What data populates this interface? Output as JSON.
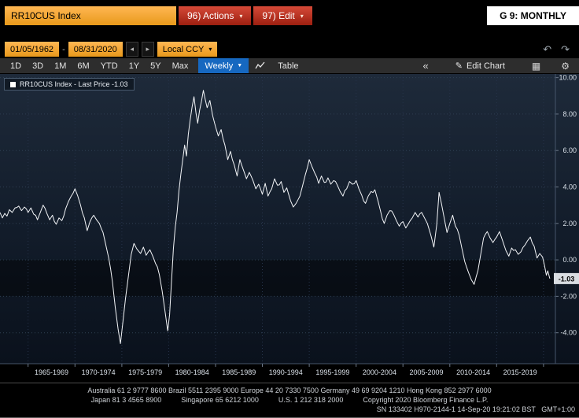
{
  "titlebar": {
    "ticker": "RR10CUS Index",
    "actions": "96) Actions",
    "edit": "97) Edit",
    "page_label": "G 9: MONTHLY"
  },
  "datebar": {
    "start": "01/05/1962",
    "dash": "-",
    "end": "08/31/2020",
    "currency": "Local CCY"
  },
  "toolbar": {
    "periods": [
      "1D",
      "3D",
      "1M",
      "6M",
      "YTD",
      "1Y",
      "5Y",
      "Max"
    ],
    "frequency": "Weekly",
    "table": "Table",
    "edit_chart": "Edit Chart"
  },
  "icons": {
    "caret_down_small": "▾",
    "caret_down": "▼",
    "back_arrow": "◂",
    "forward_arrow": "▸",
    "undo": "↶",
    "redo": "↷",
    "collapse": "«",
    "pencil": "✎",
    "grid": "▦",
    "gear": "⚙"
  },
  "chart": {
    "legend_label": "RR10CUS Index - Last Price -1.03",
    "last_price": "-1.03",
    "y_tick_values": [
      10,
      8,
      6,
      4,
      2,
      0,
      -2,
      -4
    ],
    "y_tick_labels": [
      "10.00",
      "8.00",
      "6.00",
      "4.00",
      "2.00",
      "0.00",
      "-2.00",
      "-4.00"
    ],
    "x_tick_labels": [
      "1965-1969",
      "1970-1974",
      "1975-1979",
      "1980-1984",
      "1985-1989",
      "1990-1994",
      "1995-1999",
      "2000-2004",
      "2005-2009",
      "2010-2014",
      "2015-2019"
    ],
    "x_tick_centers": [
      1967.5,
      1972.5,
      1977.5,
      1982.5,
      1987.5,
      1992.5,
      1997.5,
      2002.5,
      2007.5,
      2012.5,
      2017.5
    ],
    "band": {
      "from": 0,
      "to": -2
    },
    "line_color": "#f3f5f8",
    "accent_amber": "#f5a11e",
    "accent_red": "#b5271c",
    "accent_blue": "#1668c0"
  },
  "chart_data": {
    "type": "line",
    "title": "RR10CUS Index",
    "xlabel": "",
    "ylabel": "",
    "xlim": [
      1962,
      2021.1
    ],
    "ylim": [
      -5.7,
      10.2
    ],
    "x_tick_years": [
      1965,
      1970,
      1975,
      1980,
      1985,
      1990,
      1995,
      2000,
      2005,
      2010,
      2015,
      2020
    ],
    "series": [
      {
        "name": "RR10CUS Index",
        "points": [
          [
            1962.0,
            2.6
          ],
          [
            1962.25,
            2.3
          ],
          [
            1962.5,
            2.55
          ],
          [
            1962.75,
            2.4
          ],
          [
            1963.0,
            2.75
          ],
          [
            1963.3,
            2.6
          ],
          [
            1963.6,
            2.85
          ],
          [
            1964.0,
            2.95
          ],
          [
            1964.3,
            2.7
          ],
          [
            1964.6,
            2.9
          ],
          [
            1965.0,
            2.6
          ],
          [
            1965.3,
            2.85
          ],
          [
            1965.6,
            2.5
          ],
          [
            1966.0,
            2.2
          ],
          [
            1966.3,
            2.6
          ],
          [
            1966.6,
            3.0
          ],
          [
            1967.0,
            2.55
          ],
          [
            1967.3,
            2.2
          ],
          [
            1967.6,
            2.45
          ],
          [
            1968.0,
            1.95
          ],
          [
            1968.3,
            2.3
          ],
          [
            1968.6,
            2.15
          ],
          [
            1969.0,
            2.8
          ],
          [
            1969.3,
            3.2
          ],
          [
            1969.6,
            3.5
          ],
          [
            1970.0,
            3.9
          ],
          [
            1970.3,
            3.5
          ],
          [
            1970.6,
            3.0
          ],
          [
            1971.0,
            2.3
          ],
          [
            1971.3,
            1.6
          ],
          [
            1971.6,
            2.1
          ],
          [
            1972.0,
            2.45
          ],
          [
            1972.3,
            2.2
          ],
          [
            1972.6,
            2.0
          ],
          [
            1973.0,
            1.5
          ],
          [
            1973.3,
            0.8
          ],
          [
            1973.6,
            0.1
          ],
          [
            1974.0,
            -1.2
          ],
          [
            1974.3,
            -2.6
          ],
          [
            1974.6,
            -3.8
          ],
          [
            1974.85,
            -4.6
          ],
          [
            1975.1,
            -3.5
          ],
          [
            1975.4,
            -2.1
          ],
          [
            1975.7,
            -0.9
          ],
          [
            1976.0,
            0.3
          ],
          [
            1976.3,
            0.9
          ],
          [
            1976.6,
            0.6
          ],
          [
            1977.0,
            0.35
          ],
          [
            1977.3,
            0.7
          ],
          [
            1977.6,
            0.25
          ],
          [
            1978.0,
            0.55
          ],
          [
            1978.3,
            0.2
          ],
          [
            1978.6,
            -0.2
          ],
          [
            1979.0,
            -0.8
          ],
          [
            1979.3,
            -1.7
          ],
          [
            1979.6,
            -2.8
          ],
          [
            1979.9,
            -3.9
          ],
          [
            1980.1,
            -3.0
          ],
          [
            1980.3,
            -1.2
          ],
          [
            1980.5,
            0.6
          ],
          [
            1980.7,
            1.8
          ],
          [
            1980.9,
            2.6
          ],
          [
            1981.1,
            3.8
          ],
          [
            1981.3,
            4.7
          ],
          [
            1981.5,
            5.5
          ],
          [
            1981.7,
            6.3
          ],
          [
            1981.9,
            5.7
          ],
          [
            1982.1,
            6.9
          ],
          [
            1982.3,
            7.7
          ],
          [
            1982.5,
            8.4
          ],
          [
            1982.7,
            8.95
          ],
          [
            1982.9,
            8.1
          ],
          [
            1983.1,
            7.5
          ],
          [
            1983.3,
            8.2
          ],
          [
            1983.5,
            8.7
          ],
          [
            1983.7,
            9.3
          ],
          [
            1983.9,
            8.8
          ],
          [
            1984.1,
            8.35
          ],
          [
            1984.4,
            8.75
          ],
          [
            1984.7,
            7.9
          ],
          [
            1985.0,
            7.3
          ],
          [
            1985.3,
            6.8
          ],
          [
            1985.6,
            7.15
          ],
          [
            1986.0,
            6.3
          ],
          [
            1986.3,
            5.5
          ],
          [
            1986.6,
            5.95
          ],
          [
            1987.0,
            5.2
          ],
          [
            1987.3,
            4.6
          ],
          [
            1987.6,
            5.5
          ],
          [
            1988.0,
            4.9
          ],
          [
            1988.3,
            4.45
          ],
          [
            1988.6,
            4.8
          ],
          [
            1989.0,
            4.35
          ],
          [
            1989.3,
            3.9
          ],
          [
            1989.6,
            4.15
          ],
          [
            1990.0,
            3.6
          ],
          [
            1990.3,
            4.2
          ],
          [
            1990.6,
            3.5
          ],
          [
            1991.0,
            3.9
          ],
          [
            1991.3,
            4.45
          ],
          [
            1991.6,
            4.1
          ],
          [
            1992.0,
            4.3
          ],
          [
            1992.3,
            3.7
          ],
          [
            1992.6,
            3.95
          ],
          [
            1993.0,
            3.25
          ],
          [
            1993.3,
            2.9
          ],
          [
            1993.6,
            3.1
          ],
          [
            1994.0,
            3.5
          ],
          [
            1994.3,
            4.1
          ],
          [
            1994.6,
            4.7
          ],
          [
            1995.0,
            5.5
          ],
          [
            1995.3,
            5.1
          ],
          [
            1995.6,
            4.75
          ],
          [
            1996.0,
            4.2
          ],
          [
            1996.3,
            4.6
          ],
          [
            1996.6,
            4.25
          ],
          [
            1997.0,
            4.5
          ],
          [
            1997.3,
            4.15
          ],
          [
            1997.6,
            4.35
          ],
          [
            1998.0,
            4.1
          ],
          [
            1998.3,
            3.75
          ],
          [
            1998.6,
            3.5
          ],
          [
            1999.0,
            3.9
          ],
          [
            1999.3,
            4.3
          ],
          [
            1999.6,
            4.15
          ],
          [
            2000.0,
            4.35
          ],
          [
            2000.3,
            3.9
          ],
          [
            2000.6,
            3.55
          ],
          [
            2001.0,
            3.1
          ],
          [
            2001.3,
            3.5
          ],
          [
            2001.6,
            3.75
          ],
          [
            2002.0,
            3.85
          ],
          [
            2002.3,
            3.3
          ],
          [
            2002.6,
            2.7
          ],
          [
            2003.0,
            2.0
          ],
          [
            2003.3,
            2.45
          ],
          [
            2003.6,
            2.7
          ],
          [
            2004.0,
            2.5
          ],
          [
            2004.3,
            2.15
          ],
          [
            2004.6,
            1.85
          ],
          [
            2005.0,
            2.1
          ],
          [
            2005.3,
            1.75
          ],
          [
            2005.6,
            2.0
          ],
          [
            2006.0,
            2.3
          ],
          [
            2006.3,
            2.6
          ],
          [
            2006.6,
            2.35
          ],
          [
            2007.0,
            2.6
          ],
          [
            2007.3,
            2.3
          ],
          [
            2007.6,
            2.0
          ],
          [
            2008.0,
            1.3
          ],
          [
            2008.3,
            0.7
          ],
          [
            2008.6,
            1.9
          ],
          [
            2008.85,
            3.7
          ],
          [
            2009.1,
            3.1
          ],
          [
            2009.4,
            2.3
          ],
          [
            2009.7,
            1.5
          ],
          [
            2010.0,
            2.0
          ],
          [
            2010.3,
            2.45
          ],
          [
            2010.6,
            1.85
          ],
          [
            2011.0,
            1.35
          ],
          [
            2011.3,
            0.6
          ],
          [
            2011.6,
            -0.1
          ],
          [
            2012.0,
            -0.7
          ],
          [
            2012.3,
            -1.1
          ],
          [
            2012.6,
            -1.35
          ],
          [
            2013.0,
            -0.6
          ],
          [
            2013.3,
            0.3
          ],
          [
            2013.6,
            1.2
          ],
          [
            2014.0,
            1.55
          ],
          [
            2014.3,
            1.2
          ],
          [
            2014.6,
            0.95
          ],
          [
            2015.0,
            1.25
          ],
          [
            2015.3,
            1.55
          ],
          [
            2015.6,
            1.1
          ],
          [
            2016.0,
            0.5
          ],
          [
            2016.3,
            0.2
          ],
          [
            2016.6,
            0.65
          ],
          [
            2017.0,
            0.55
          ],
          [
            2017.3,
            0.3
          ],
          [
            2017.6,
            0.45
          ],
          [
            2018.0,
            0.8
          ],
          [
            2018.3,
            1.05
          ],
          [
            2018.6,
            1.25
          ],
          [
            2019.0,
            0.75
          ],
          [
            2019.3,
            0.1
          ],
          [
            2019.6,
            0.35
          ],
          [
            2019.9,
            0.15
          ],
          [
            2020.1,
            -0.3
          ],
          [
            2020.3,
            -0.85
          ],
          [
            2020.45,
            -0.6
          ],
          [
            2020.67,
            -1.03
          ]
        ]
      }
    ]
  },
  "footer": {
    "line1": "Australia 61 2 9777 8600 Brazil 5511 2395 9000 Europe 44 20 7330 7500 Germany 49 69 9204 1210 Hong Kong 852 2977 6000",
    "line2": "Japan 81 3 4565 8900          Singapore 65 6212 1000          U.S. 1 212 318 2000          Copyright 2020 Bloomberg Finance L.P.",
    "line3": "SN 133402 H970-2144-1 14-Sep-20 19:21:02 BST   GMT+1:00"
  }
}
